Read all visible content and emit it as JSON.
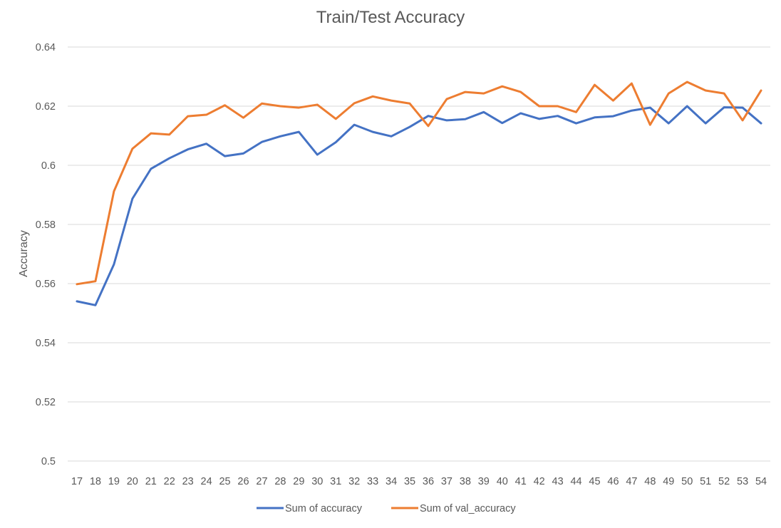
{
  "chart_data": {
    "type": "line",
    "title": "Train/Test Accuracy",
    "xlabel": "",
    "ylabel": "Accuracy",
    "x": [
      17,
      18,
      19,
      20,
      21,
      22,
      23,
      24,
      25,
      26,
      27,
      28,
      29,
      30,
      31,
      32,
      33,
      34,
      35,
      36,
      37,
      38,
      39,
      40,
      41,
      42,
      43,
      44,
      45,
      46,
      47,
      48,
      49,
      50,
      51,
      52,
      53,
      54
    ],
    "yticks": [
      0.5,
      0.52,
      0.54,
      0.56,
      0.58,
      0.6,
      0.62,
      0.64
    ],
    "ytick_labels": [
      "0.5",
      "0.52",
      "0.54",
      "0.56",
      "0.58",
      "0.6",
      "0.62",
      "0.64"
    ],
    "ylim": [
      0.5,
      0.64
    ],
    "grid": "horizontal",
    "legend_position": "bottom",
    "series": [
      {
        "name": "Sum of accuracy",
        "color": "#4472c4",
        "values": [
          0.554,
          0.5527,
          0.5665,
          0.5887,
          0.5988,
          0.6024,
          0.6054,
          0.6073,
          0.6031,
          0.604,
          0.6079,
          0.6098,
          0.6113,
          0.6036,
          0.6078,
          0.6137,
          0.6113,
          0.6098,
          0.613,
          0.6167,
          0.6152,
          0.6156,
          0.618,
          0.6143,
          0.6176,
          0.6157,
          0.6167,
          0.6142,
          0.6162,
          0.6166,
          0.6185,
          0.6195,
          0.6142,
          0.62,
          0.6142,
          0.6196,
          0.6195,
          0.6142
        ]
      },
      {
        "name": "Sum of val_accuracy",
        "color": "#ed7d31",
        "values": [
          0.5598,
          0.5608,
          0.5912,
          0.6056,
          0.6108,
          0.6104,
          0.6166,
          0.6171,
          0.6203,
          0.6161,
          0.6209,
          0.62,
          0.6195,
          0.6205,
          0.6157,
          0.621,
          0.6233,
          0.6219,
          0.6209,
          0.6133,
          0.6224,
          0.6248,
          0.6243,
          0.6267,
          0.6248,
          0.62,
          0.62,
          0.618,
          0.6272,
          0.6219,
          0.6277,
          0.6137,
          0.6243,
          0.6282,
          0.6253,
          0.6243,
          0.6152,
          0.6253
        ]
      }
    ]
  }
}
